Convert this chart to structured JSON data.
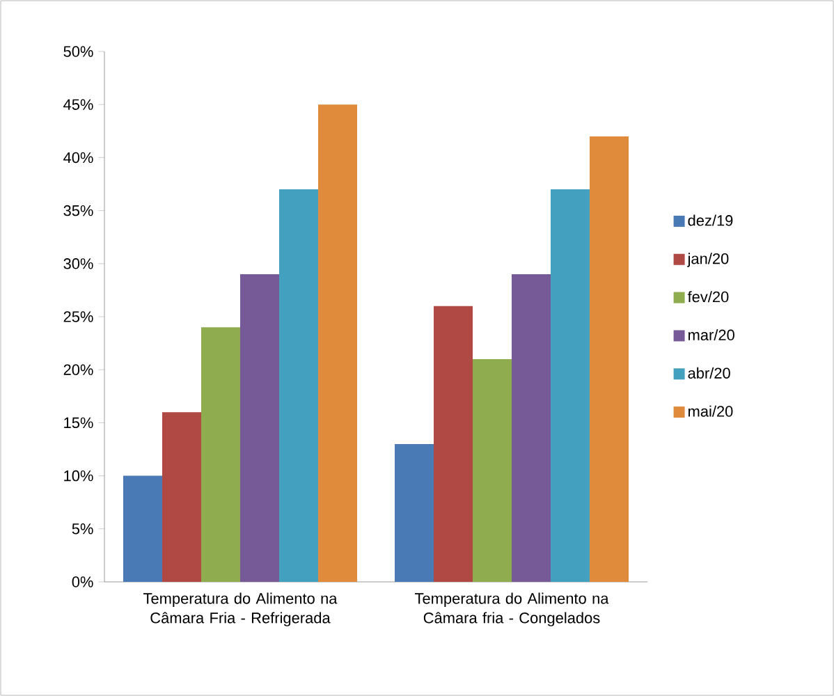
{
  "chart_data": {
    "type": "bar",
    "categories": [
      "Temperatura do Alimento na Câmara Fria - Refrigerada",
      "Temperatura do Alimento na Câmara fria - Congelados"
    ],
    "series": [
      {
        "name": "dez/19",
        "color": "#4a7ab5",
        "values": [
          10,
          13
        ]
      },
      {
        "name": "jan/20",
        "color": "#b04844",
        "values": [
          16,
          26
        ]
      },
      {
        "name": "fev/20",
        "color": "#8fad4f",
        "values": [
          24,
          21
        ]
      },
      {
        "name": "mar/20",
        "color": "#765a97",
        "values": [
          29,
          29
        ]
      },
      {
        "name": "abr/20",
        "color": "#43a1bf",
        "values": [
          37,
          37
        ]
      },
      {
        "name": "mai/20",
        "color": "#e08b3c",
        "values": [
          45,
          42
        ]
      }
    ],
    "ylim": [
      0,
      50
    ],
    "yticks": [
      {
        "value": 0,
        "label": "0%"
      },
      {
        "value": 5,
        "label": "5%"
      },
      {
        "value": 10,
        "label": "10%"
      },
      {
        "value": 15,
        "label": "15%"
      },
      {
        "value": 20,
        "label": "20%"
      },
      {
        "value": 25,
        "label": "25%"
      },
      {
        "value": 30,
        "label": "30%"
      },
      {
        "value": 35,
        "label": "35%"
      },
      {
        "value": 40,
        "label": "40%"
      },
      {
        "value": 45,
        "label": "45%"
      },
      {
        "value": 50,
        "label": "50%"
      }
    ],
    "grid": false,
    "legend": "right"
  }
}
